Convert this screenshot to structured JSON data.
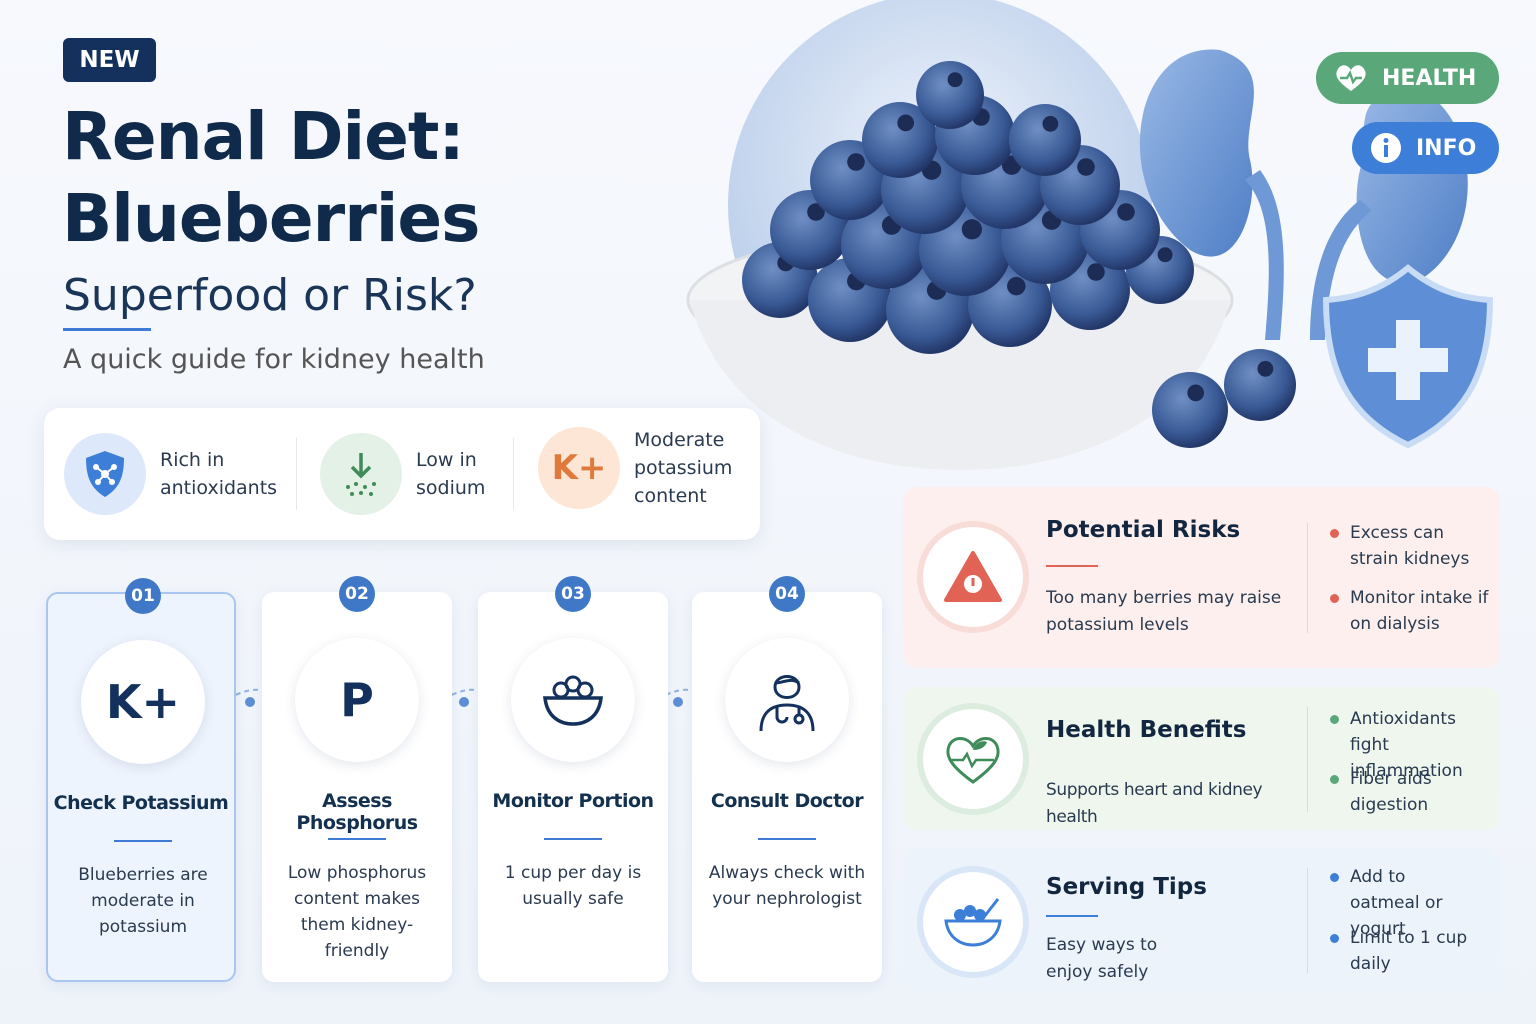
{
  "badge": "NEW",
  "title": {
    "line1": "Renal Diet:",
    "line2": "Blueberries"
  },
  "subtitle": "Superfood or Risk?",
  "tagline": "A quick guide for kidney health",
  "tags": [
    "HEALTH",
    "INFO"
  ],
  "features": [
    {
      "text": "Rich in antioxidants"
    },
    {
      "text": "Low in sodium"
    },
    {
      "icon": "K+",
      "text": "Moderate potassium content"
    }
  ],
  "steps": [
    {
      "number": "01",
      "icon": "K+",
      "title": "Check Potassium",
      "text": "Blueberries are moderate in potassium"
    },
    {
      "number": "02",
      "icon": "P",
      "title": "Assess Phosphorus",
      "text": "Low phosphorus content makes them kidney-friendly"
    },
    {
      "number": "03",
      "title": "Monitor Portion",
      "text": "1 cup per day is usually safe"
    },
    {
      "number": "04",
      "title": "Consult Doctor",
      "text": "Always check with your nephrologist"
    }
  ],
  "panels": [
    {
      "title": "Potential Risks",
      "text": "Too many berries may raise potassium levels",
      "bullets": [
        "Excess can strain kidneys",
        "Monitor intake if on dialysis"
      ]
    },
    {
      "title": "Health Benefits",
      "text": "Supports heart and kidney health",
      "bullets": [
        "Antioxidants fight inflammation",
        "Fiber aids digestion"
      ]
    },
    {
      "title": "Serving Tips",
      "text": "Easy ways to enjoy safely",
      "bullets": [
        "Add to oatmeal or yogurt",
        "Limit to 1 cup daily"
      ]
    }
  ]
}
